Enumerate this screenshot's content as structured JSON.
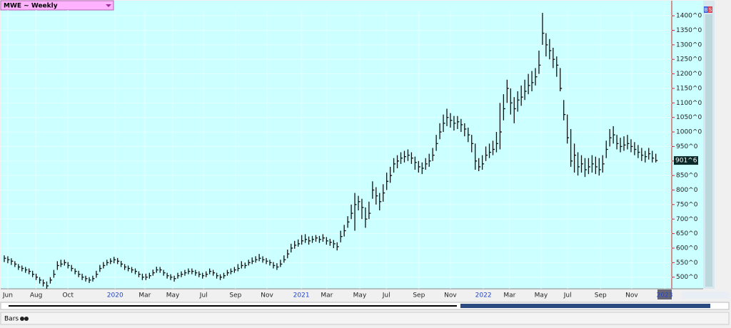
{
  "chart_data": {
    "type": "ohlc",
    "title": "MWE ~ Weekly",
    "last_price_label": "901^6",
    "tab": "Bars",
    "badges": [
      "B",
      "S"
    ],
    "color": "#111111",
    "background": "#ccffff",
    "grid": true,
    "xlim": [
      -1,
      188.5
    ],
    "ylim": [
      460,
      1420
    ],
    "xticks": [
      {
        "value": 1,
        "label": "Jun"
      },
      {
        "value": 9,
        "label": "Aug"
      },
      {
        "value": 18,
        "label": "Oct"
      },
      {
        "value": 31.3,
        "label": "2020"
      },
      {
        "value": 39.7,
        "label": "Mar"
      },
      {
        "value": 47.6,
        "label": "May"
      },
      {
        "value": 56.3,
        "label": "Jul"
      },
      {
        "value": 65.3,
        "label": "Sep"
      },
      {
        "value": 74.2,
        "label": "Nov"
      },
      {
        "value": 83.9,
        "label": "2021"
      },
      {
        "value": 91.1,
        "label": "Mar"
      },
      {
        "value": 100.4,
        "label": "May"
      },
      {
        "value": 107.9,
        "label": "Jul"
      },
      {
        "value": 117.1,
        "label": "Sep"
      },
      {
        "value": 126,
        "label": "Nov"
      },
      {
        "value": 135.3,
        "label": "2022"
      },
      {
        "value": 142.7,
        "label": "Mar"
      },
      {
        "value": 151.6,
        "label": "May"
      },
      {
        "value": 159.1,
        "label": "Jul"
      },
      {
        "value": 168.4,
        "label": "Sep"
      },
      {
        "value": 177.2,
        "label": "Nov"
      },
      {
        "value": 186.5,
        "label": "2023"
      }
    ],
    "yticks": [
      {
        "value": 500,
        "label": "500^0"
      },
      {
        "value": 550,
        "label": "550^0"
      },
      {
        "value": 600,
        "label": "600^0"
      },
      {
        "value": 650,
        "label": "650^0"
      },
      {
        "value": 700,
        "label": "700^0"
      },
      {
        "value": 750,
        "label": "750^0"
      },
      {
        "value": 800,
        "label": "800^0"
      },
      {
        "value": 850,
        "label": "850^0"
      },
      {
        "value": 900,
        "label": "900^0"
      },
      {
        "value": 950,
        "label": "950^0"
      },
      {
        "value": 1000,
        "label": "1000^0"
      },
      {
        "value": 1050,
        "label": "1050^0"
      },
      {
        "value": 1100,
        "label": "1100^0"
      },
      {
        "value": 1150,
        "label": "1150^0"
      },
      {
        "value": 1200,
        "label": "1200^0"
      },
      {
        "value": 1250,
        "label": "1250^0"
      },
      {
        "value": 1300,
        "label": "1300^0"
      },
      {
        "value": 1350,
        "label": "1350^0"
      },
      {
        "value": 1400,
        "label": "1400^0"
      }
    ],
    "high": [
      575,
      572,
      565,
      555,
      545,
      540,
      535,
      530,
      522,
      512,
      500,
      492,
      485,
      500,
      525,
      555,
      560,
      560,
      552,
      542,
      530,
      522,
      512,
      505,
      500,
      505,
      522,
      542,
      552,
      560,
      565,
      570,
      566,
      556,
      545,
      540,
      535,
      530,
      520,
      512,
      512,
      515,
      526,
      536,
      535,
      525,
      515,
      510,
      505,
      515,
      520,
      525,
      530,
      530,
      525,
      520,
      515,
      520,
      530,
      525,
      515,
      510,
      515,
      525,
      530,
      535,
      545,
      555,
      550,
      560,
      568,
      572,
      580,
      572,
      566,
      560,
      552,
      548,
      560,
      575,
      595,
      615,
      625,
      630,
      645,
      648,
      640,
      642,
      645,
      642,
      648,
      638,
      632,
      628,
      620,
      660,
      680,
      710,
      750,
      790,
      780,
      770,
      740,
      760,
      830,
      810,
      790,
      820,
      860,
      880,
      910,
      920,
      930,
      935,
      940,
      930,
      915,
      900,
      895,
      910,
      925,
      945,
      990,
      1030,
      1060,
      1080,
      1065,
      1055,
      1055,
      1045,
      1030,
      1015,
      990,
      960,
      910,
      920,
      950,
      960,
      970,
      1000,
      1100,
      1130,
      1180,
      1150,
      1120,
      1140,
      1160,
      1180,
      1200,
      1210,
      1220,
      1280,
      1410,
      1340,
      1320,
      1290,
      1260,
      1220,
      1110,
      1060,
      1010,
      960,
      930,
      920,
      910,
      910,
      920,
      915,
      910,
      920,
      970,
      1010,
      1020,
      990,
      980,
      985,
      990,
      975,
      965,
      955,
      945,
      935,
      945,
      935,
      925
    ],
    "low": [
      552,
      548,
      542,
      535,
      525,
      520,
      515,
      510,
      500,
      490,
      478,
      468,
      460,
      478,
      498,
      525,
      535,
      540,
      530,
      520,
      510,
      500,
      490,
      485,
      480,
      485,
      498,
      518,
      530,
      540,
      545,
      548,
      545,
      535,
      525,
      520,
      515,
      510,
      500,
      490,
      490,
      495,
      505,
      515,
      515,
      505,
      495,
      490,
      485,
      495,
      500,
      505,
      510,
      510,
      505,
      500,
      495,
      500,
      510,
      505,
      495,
      490,
      495,
      505,
      510,
      515,
      520,
      530,
      530,
      540,
      545,
      550,
      555,
      550,
      545,
      540,
      530,
      525,
      535,
      550,
      565,
      585,
      598,
      605,
      612,
      618,
      612,
      618,
      622,
      618,
      622,
      612,
      608,
      600,
      592,
      620,
      640,
      670,
      700,
      660,
      730,
      700,
      670,
      700,
      770,
      750,
      730,
      760,
      800,
      825,
      860,
      875,
      890,
      895,
      900,
      890,
      870,
      860,
      855,
      870,
      880,
      900,
      935,
      975,
      1000,
      1020,
      1015,
      1005,
      1010,
      1000,
      985,
      965,
      930,
      870,
      865,
      870,
      900,
      910,
      920,
      930,
      940,
      1040,
      1100,
      1060,
      1030,
      1070,
      1090,
      1110,
      1130,
      1140,
      1160,
      1200,
      1300,
      1260,
      1250,
      1220,
      1190,
      1140,
      1040,
      960,
      880,
      860,
      850,
      860,
      845,
      855,
      860,
      855,
      850,
      860,
      910,
      950,
      960,
      940,
      930,
      935,
      940,
      930,
      920,
      910,
      900,
      895,
      905,
      895,
      895
    ],
    "close": [
      565,
      560,
      555,
      545,
      535,
      530,
      525,
      520,
      510,
      500,
      490,
      480,
      470,
      490,
      510,
      540,
      545,
      550,
      540,
      530,
      520,
      510,
      500,
      495,
      490,
      495,
      510,
      530,
      540,
      550,
      555,
      560,
      555,
      545,
      535,
      530,
      525,
      520,
      510,
      500,
      500,
      505,
      515,
      525,
      525,
      515,
      505,
      500,
      495,
      505,
      510,
      515,
      520,
      520,
      515,
      510,
      505,
      510,
      520,
      515,
      505,
      500,
      505,
      515,
      520,
      525,
      530,
      540,
      540,
      550,
      555,
      560,
      565,
      560,
      555,
      550,
      540,
      535,
      545,
      560,
      580,
      600,
      610,
      615,
      625,
      630,
      625,
      630,
      635,
      630,
      635,
      625,
      620,
      615,
      605,
      640,
      660,
      690,
      720,
      750,
      760,
      740,
      700,
      720,
      800,
      780,
      760,
      790,
      830,
      850,
      890,
      900,
      910,
      915,
      920,
      910,
      895,
      880,
      875,
      890,
      900,
      920,
      960,
      1000,
      1030,
      1050,
      1040,
      1030,
      1035,
      1025,
      1010,
      990,
      960,
      900,
      880,
      890,
      920,
      930,
      940,
      960,
      1000,
      1080,
      1150,
      1100,
      1080,
      1110,
      1120,
      1140,
      1160,
      1170,
      1190,
      1230,
      1340,
      1300,
      1280,
      1250,
      1230,
      1150,
      1060,
      980,
      900,
      920,
      880,
      890,
      870,
      880,
      890,
      880,
      870,
      890,
      940,
      980,
      990,
      960,
      950,
      955,
      960,
      950,
      940,
      930,
      920,
      915,
      925,
      910,
      901.75
    ]
  }
}
